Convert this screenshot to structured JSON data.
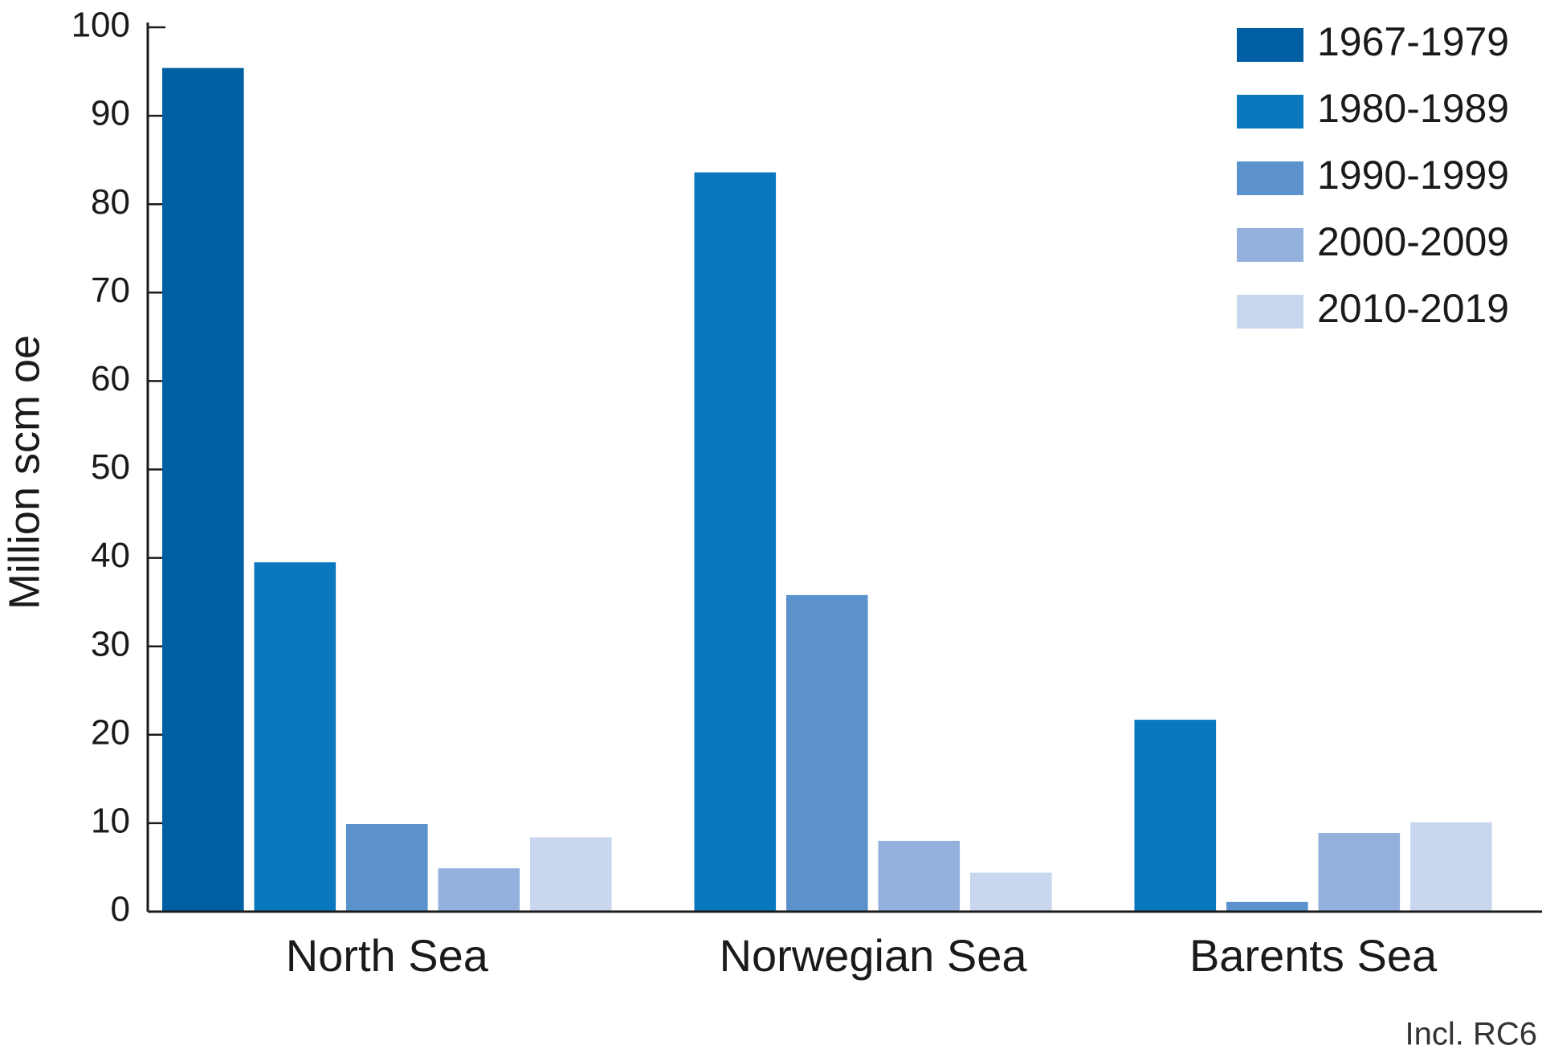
{
  "chart_data": {
    "type": "bar",
    "y_label": "Million scm oe",
    "note": "Incl. RC6",
    "categories": [
      "North Sea",
      "Norwegian Sea",
      "Barents Sea"
    ],
    "series": [
      {
        "name": "1967-1979",
        "color": "#005ea3",
        "values": [
          95.4,
          null,
          null
        ]
      },
      {
        "name": "1980-1989",
        "color": "#0a78bf",
        "values": [
          39.5,
          83.6,
          21.7
        ]
      },
      {
        "name": "1990-1999",
        "color": "#5b92cc",
        "values": [
          9.9,
          35.8,
          1.1
        ]
      },
      {
        "name": "2000-2009",
        "color": "#93b1dc",
        "values": [
          4.9,
          8.0,
          8.9
        ]
      },
      {
        "name": "2010-2019",
        "color": "#c8d6ee",
        "values": [
          8.4,
          4.4,
          10.1
        ]
      }
    ],
    "ylim": [
      0,
      100
    ],
    "yticks": [
      0,
      10,
      20,
      30,
      40,
      50,
      60,
      70,
      80,
      90,
      100
    ],
    "legend": "top-right"
  }
}
